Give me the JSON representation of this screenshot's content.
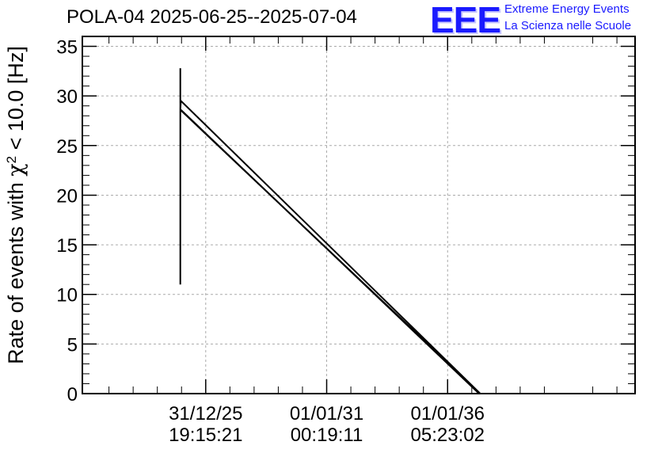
{
  "header": {
    "title": "POLA-04 2025-06-25--2025-07-04",
    "logo_mark": "EEE",
    "logo_line1": "Extreme Energy Events",
    "logo_line2": "La Scienza nelle Scuole"
  },
  "colors": {
    "logo": "#1a1aff",
    "grid": "#aaaaaa",
    "line": "#000000"
  },
  "chart_data": {
    "type": "line",
    "title": "POLA-04 2025-06-25--2025-07-04",
    "ylabel_prefix": "Rate of events with ",
    "ylabel_chi": "χ",
    "ylabel_sup": "2",
    "ylabel_suffix": " < 10.0 [Hz]",
    "xlabel": "",
    "ylim": [
      0,
      36
    ],
    "xlim": [
      -1.02,
      3.55
    ],
    "y_ticks": [
      0,
      5,
      10,
      15,
      20,
      25,
      30,
      35
    ],
    "x_ticks": [
      {
        "x": 0,
        "line1": "31/12/25",
        "line2": "19:15:21"
      },
      {
        "x": 1,
        "line1": "01/01/31",
        "line2": "00:19:11"
      },
      {
        "x": 2,
        "line1": "01/01/36",
        "line2": "05:23:02"
      }
    ],
    "grid": true,
    "series": [
      {
        "x": [
          -0.21,
          -0.21,
          -0.21,
          -0.21,
          -0.21,
          -0.21,
          -0.21,
          -0.205,
          2.27,
          -0.21
        ],
        "y": [
          11,
          32.8,
          18,
          31.5,
          12,
          29,
          28.7,
          29.5,
          0,
          28.6
        ]
      },
      {
        "x": [
          -0.205,
          2.26
        ],
        "y": [
          28.6,
          0
        ]
      }
    ]
  }
}
